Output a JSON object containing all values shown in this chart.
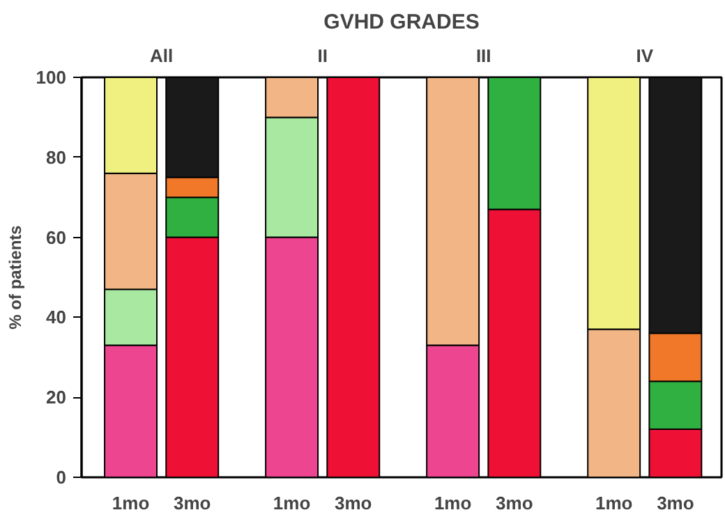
{
  "chart_data": {
    "type": "bar",
    "title": "GVHD GRADES",
    "ylabel": "% of patients",
    "stacked": true,
    "grid": false,
    "categories": [
      "1mo",
      "3mo",
      "1mo",
      "3mo",
      "1mo",
      "3mo",
      "1mo",
      "3mo"
    ],
    "annotations": [
      "All",
      "II",
      "III",
      "IV"
    ],
    "ylim": [
      0,
      100
    ],
    "yticks": [
      0,
      20,
      40,
      60,
      80,
      100
    ],
    "series": [
      {
        "color": "#ee4590",
        "values": [
          33,
          0,
          60,
          0,
          33,
          0,
          0,
          0
        ]
      },
      {
        "color": "#a8e8a0",
        "values": [
          14,
          0,
          30,
          0,
          0,
          0,
          0,
          0
        ]
      },
      {
        "color": "#f2b585",
        "values": [
          29,
          0,
          10,
          0,
          67,
          0,
          37,
          0
        ]
      },
      {
        "color": "#f0f080",
        "values": [
          24,
          0,
          0,
          0,
          0,
          0,
          63,
          0
        ]
      },
      {
        "color": "#ee1035",
        "values": [
          0,
          60,
          0,
          100,
          0,
          67,
          0,
          12
        ]
      },
      {
        "color": "#30b040",
        "values": [
          0,
          10,
          0,
          0,
          0,
          33,
          0,
          12
        ]
      },
      {
        "color": "#f07828",
        "values": [
          0,
          5,
          0,
          0,
          0,
          0,
          0,
          12
        ]
      },
      {
        "color": "#1a1a1a",
        "values": [
          0,
          25,
          0,
          0,
          0,
          0,
          0,
          64
        ]
      }
    ]
  }
}
